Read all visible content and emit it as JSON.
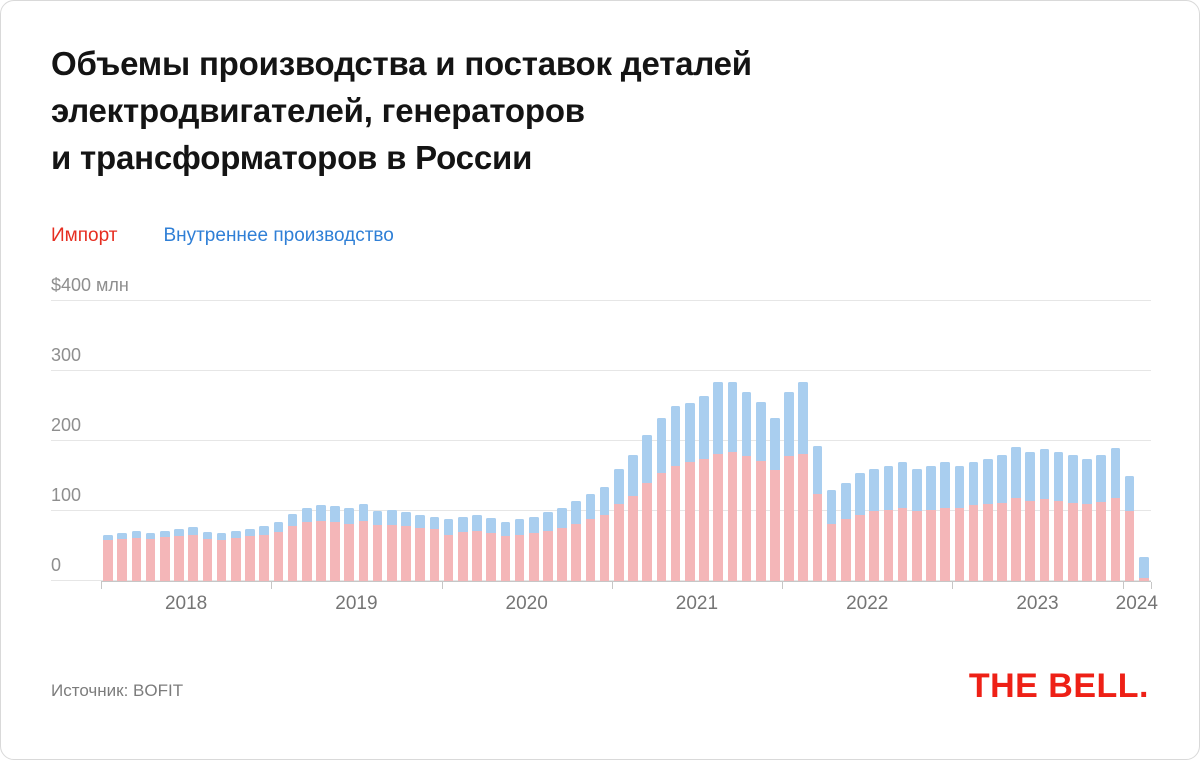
{
  "title": {
    "lines": [
      "Объемы производства и поставок деталей",
      "электродвигателей, генераторов",
      "и трансформаторов в России"
    ]
  },
  "legend": [
    {
      "label": "Импорт",
      "color": "#e62e21"
    },
    {
      "label": "Внутреннее производство",
      "color": "#2f7fd6"
    }
  ],
  "source": "Источник: BOFIT",
  "brand": {
    "text": "THE BELL.",
    "color": "#ee2016"
  },
  "chart_data": {
    "type": "bar",
    "stacked": true,
    "title": "Объемы производства и поставок деталей электродвигателей, генераторов и трансформаторов в России",
    "unit": "$ млн",
    "ylim": [
      0,
      400
    ],
    "yticks": [
      0,
      100,
      200,
      300,
      400
    ],
    "ytick_labels": [
      "0",
      "100",
      "200",
      "300",
      "$400 млн"
    ],
    "grid": true,
    "legend_position": "top-left",
    "years": [
      {
        "label": "2018",
        "months": 12
      },
      {
        "label": "2019",
        "months": 12
      },
      {
        "label": "2020",
        "months": 12
      },
      {
        "label": "2021",
        "months": 12
      },
      {
        "label": "2022",
        "months": 12
      },
      {
        "label": "2023",
        "months": 12
      },
      {
        "label": "2024",
        "months": 2
      }
    ],
    "x": [
      "2018-01",
      "2018-02",
      "2018-03",
      "2018-04",
      "2018-05",
      "2018-06",
      "2018-07",
      "2018-08",
      "2018-09",
      "2018-10",
      "2018-11",
      "2018-12",
      "2019-01",
      "2019-02",
      "2019-03",
      "2019-04",
      "2019-05",
      "2019-06",
      "2019-07",
      "2019-08",
      "2019-09",
      "2019-10",
      "2019-11",
      "2019-12",
      "2020-01",
      "2020-02",
      "2020-03",
      "2020-04",
      "2020-05",
      "2020-06",
      "2020-07",
      "2020-08",
      "2020-09",
      "2020-10",
      "2020-11",
      "2020-12",
      "2021-01",
      "2021-02",
      "2021-03",
      "2021-04",
      "2021-05",
      "2021-06",
      "2021-07",
      "2021-08",
      "2021-09",
      "2021-10",
      "2021-11",
      "2021-12",
      "2022-01",
      "2022-02",
      "2022-03",
      "2022-04",
      "2022-05",
      "2022-06",
      "2022-07",
      "2022-08",
      "2022-09",
      "2022-10",
      "2022-11",
      "2022-12",
      "2023-01",
      "2023-02",
      "2023-03",
      "2023-04",
      "2023-05",
      "2023-06",
      "2023-07",
      "2023-08",
      "2023-09",
      "2023-10",
      "2023-11",
      "2023-12",
      "2024-01",
      "2024-02"
    ],
    "series": [
      {
        "name": "Импорт",
        "color": "#f4b6b8",
        "values": [
          58,
          60,
          62,
          60,
          63,
          64,
          66,
          60,
          58,
          62,
          64,
          66,
          70,
          78,
          84,
          86,
          85,
          82,
          86,
          80,
          80,
          78,
          76,
          74,
          66,
          70,
          72,
          68,
          64,
          66,
          68,
          72,
          76,
          82,
          88,
          95,
          110,
          122,
          140,
          155,
          165,
          170,
          175,
          182,
          185,
          178,
          172,
          158,
          178,
          182,
          125,
          82,
          88,
          95,
          100,
          102,
          105,
          100,
          102,
          105,
          105,
          108,
          110,
          112,
          118,
          115,
          117,
          115,
          112,
          110,
          113,
          118,
          100,
          5
        ]
      },
      {
        "name": "Внутреннее производство",
        "color": "#a9ceef",
        "values": [
          8,
          8,
          9,
          9,
          9,
          10,
          11,
          10,
          10,
          10,
          11,
          12,
          15,
          18,
          20,
          23,
          22,
          22,
          24,
          20,
          21,
          20,
          19,
          18,
          22,
          22,
          23,
          22,
          21,
          22,
          24,
          26,
          29,
          33,
          37,
          40,
          50,
          58,
          68,
          78,
          85,
          85,
          90,
          103,
          100,
          92,
          84,
          75,
          92,
          103,
          68,
          48,
          52,
          60,
          60,
          63,
          65,
          60,
          63,
          65,
          60,
          62,
          65,
          68,
          73,
          70,
          71,
          70,
          68,
          65,
          67,
          72,
          50,
          30
        ]
      }
    ]
  }
}
